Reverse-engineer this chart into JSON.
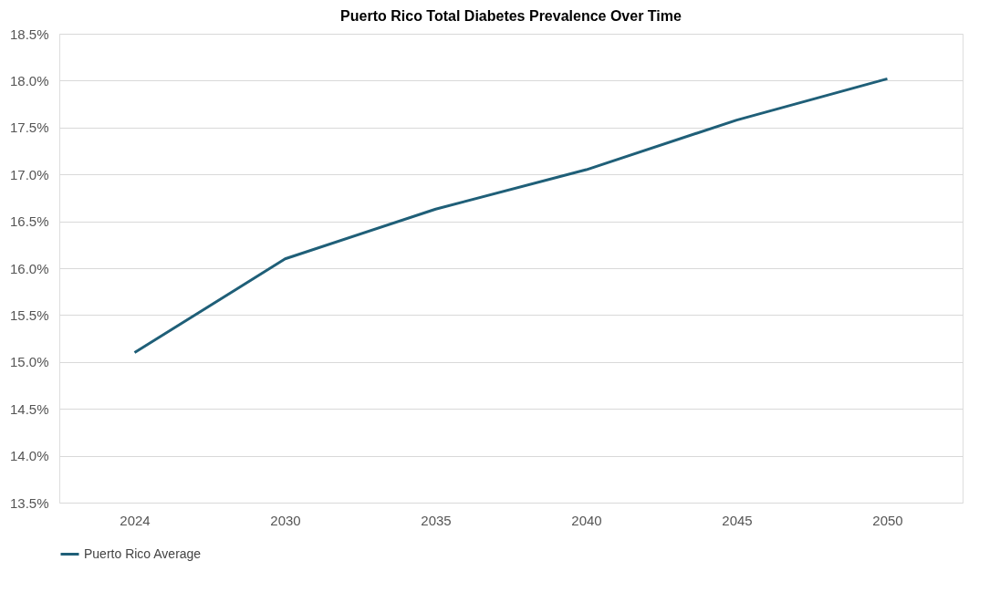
{
  "chart_data": {
    "type": "line",
    "title": "Puerto Rico Total Diabetes Prevalence Over Time",
    "categories": [
      "2024",
      "2030",
      "2035",
      "2040",
      "2045",
      "2050"
    ],
    "series": [
      {
        "name": "Puerto Rico Average",
        "color": "#1f5f78",
        "values": [
          15.1,
          16.1,
          16.63,
          17.05,
          17.58,
          18.02
        ]
      }
    ],
    "ylim": [
      13.5,
      18.5
    ],
    "yticks": [
      {
        "value": 13.5,
        "label": "13.5%"
      },
      {
        "value": 14.0,
        "label": "14.0%"
      },
      {
        "value": 14.5,
        "label": "14.5%"
      },
      {
        "value": 15.0,
        "label": "15.0%"
      },
      {
        "value": 15.5,
        "label": "15.5%"
      },
      {
        "value": 16.0,
        "label": "16.0%"
      },
      {
        "value": 16.5,
        "label": "16.5%"
      },
      {
        "value": 17.0,
        "label": "17.0%"
      },
      {
        "value": 17.5,
        "label": "17.5%"
      },
      {
        "value": 18.0,
        "label": "18.0%"
      },
      {
        "value": 18.5,
        "label": "18.5%"
      }
    ],
    "grid": "y",
    "legend": "bottom",
    "marker": "none",
    "line_style": "solid"
  }
}
